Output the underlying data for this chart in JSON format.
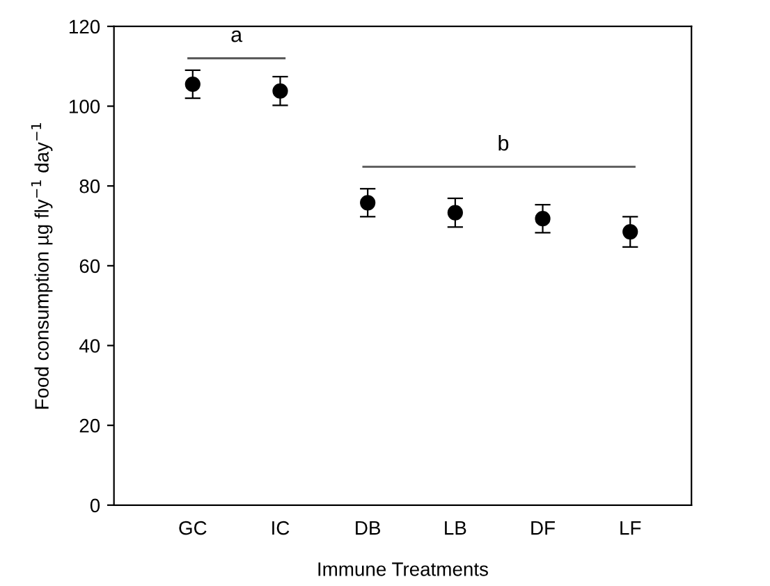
{
  "chart_data": {
    "type": "scatter",
    "xlabel": "Immune Treatments",
    "ylabel": "Food consumption µg fly$^{−1}$ day$^{−1}$",
    "categories": [
      "GC",
      "IC",
      "DB",
      "LB",
      "DF",
      "LF"
    ],
    "values": [
      105.5,
      103.8,
      75.8,
      73.3,
      71.8,
      68.5
    ],
    "errors": [
      3.5,
      3.6,
      3.5,
      3.6,
      3.5,
      3.8
    ],
    "color": "#000000",
    "marker": "circle",
    "ylim": [
      0,
      120
    ],
    "yticks": [
      0,
      20,
      40,
      60,
      80,
      100,
      120
    ],
    "annotations": [
      "a",
      "b"
    ],
    "grid": false,
    "legend": false
  }
}
